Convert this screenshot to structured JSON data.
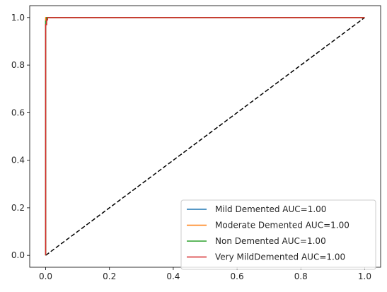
{
  "chart_data": {
    "type": "line",
    "title": "",
    "xlabel": "",
    "ylabel": "",
    "xlim": [
      -0.05,
      1.05
    ],
    "ylim": [
      -0.05,
      1.05
    ],
    "x_ticks": [
      0.0,
      0.2,
      0.4,
      0.6,
      0.8,
      1.0
    ],
    "x_tick_labels": [
      "0.0",
      "0.2",
      "0.4",
      "0.6",
      "0.8",
      "1.0"
    ],
    "y_ticks": [
      0.0,
      0.2,
      0.4,
      0.6,
      0.8,
      1.0
    ],
    "y_tick_labels": [
      "0.0",
      "0.2",
      "0.4",
      "0.6",
      "0.8",
      "1.0"
    ],
    "grid": false,
    "legend_position": "lower right",
    "series": [
      {
        "name": "Mild Demented AUC=1.00",
        "color": "#1f77b4",
        "x": [
          0.0,
          0.0,
          0.002,
          0.002,
          1.0
        ],
        "y": [
          0.0,
          0.99,
          0.99,
          1.0,
          1.0
        ]
      },
      {
        "name": "Moderate Demented AUC=1.00",
        "color": "#ff7f0e",
        "x": [
          0.0,
          0.0,
          1.0
        ],
        "y": [
          0.0,
          1.0,
          1.0
        ]
      },
      {
        "name": "Non Demented AUC=1.00",
        "color": "#2ca02c",
        "x": [
          0.0,
          0.0,
          0.003,
          0.003,
          1.0
        ],
        "y": [
          0.0,
          0.985,
          0.985,
          1.0,
          1.0
        ]
      },
      {
        "name": "Very MildDemented AUC=1.00",
        "color": "#d62728",
        "x": [
          0.0,
          0.0,
          0.003,
          0.003,
          0.006,
          0.006,
          1.0
        ],
        "y": [
          0.0,
          0.97,
          0.97,
          0.99,
          0.99,
          1.0,
          1.0
        ]
      }
    ],
    "reference_line": {
      "color": "#000000",
      "style": "dashed",
      "x": [
        0.0,
        1.0
      ],
      "y": [
        0.0,
        1.0
      ]
    }
  }
}
